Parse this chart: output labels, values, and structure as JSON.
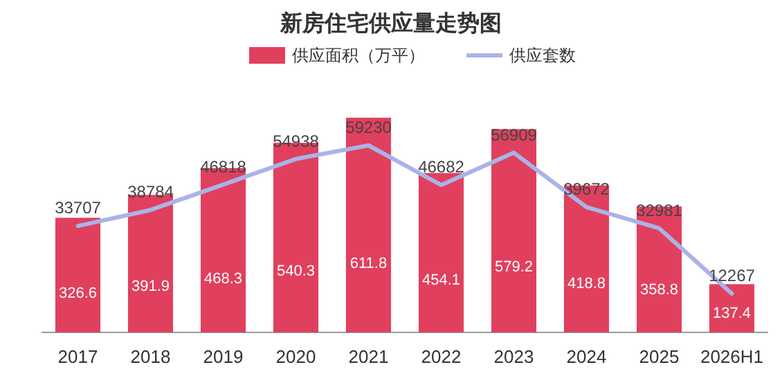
{
  "chart_data": {
    "type": "bar",
    "title": "新房住宅供应量走势图",
    "categories": [
      "2017",
      "2018",
      "2019",
      "2020",
      "2021",
      "2022",
      "2023",
      "2024",
      "2025",
      "2026H1"
    ],
    "series": [
      {
        "name": "供应面积（万平）",
        "color": "#e0405e",
        "values": [
          326.6,
          391.9,
          468.3,
          540.3,
          611.8,
          454.1,
          579.2,
          418.8,
          358.8,
          137.4
        ]
      },
      {
        "name": "供应套数",
        "type": "line",
        "axis": "y2",
        "color": "#a9b3e8",
        "values": [
          33707,
          38784,
          46818,
          54938,
          59230,
          46682,
          56909,
          39672,
          32981,
          12267
        ]
      }
    ],
    "data_labels": true,
    "legend": "top"
  }
}
